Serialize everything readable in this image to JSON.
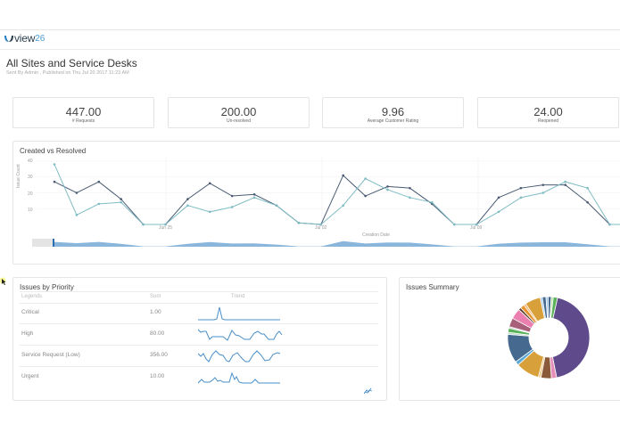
{
  "app": {
    "logo_text": "view",
    "logo_num": "26"
  },
  "report": {
    "title": "All Sites and Service Desks",
    "subtitle": "Sent By Admin , Published on Thu Jul 20 2017 11:23 AM"
  },
  "kpis": [
    {
      "value": "447.00",
      "label": "# Requests"
    },
    {
      "value": "200.00",
      "label": "Un-resolved"
    },
    {
      "value": "9.96",
      "label": "Average Customer Rating"
    },
    {
      "value": "24.00",
      "label": "Reopened"
    }
  ],
  "created_vs_resolved": {
    "title": "Created vs Resolved",
    "ylabel": "Issue Count",
    "xlabel": "Creation Date",
    "yticks": [
      "40",
      "30",
      "20",
      "10"
    ],
    "xticks": [
      "Jun 25",
      "Jul 02",
      "Jul 09"
    ]
  },
  "chart_data": {
    "type": "line",
    "title": "Created vs Resolved",
    "xlabel": "Creation Date",
    "ylabel": "Issue Count",
    "ylim": [
      0,
      40
    ],
    "x_tick_labels": [
      "Jun 25",
      "Jul 02",
      "Jul 09"
    ],
    "x_index": [
      0,
      1,
      2,
      3,
      4,
      5,
      6,
      7,
      8,
      9,
      10,
      11,
      12,
      13,
      14,
      15,
      16,
      17,
      18,
      19,
      20,
      21,
      22,
      23,
      24,
      25,
      26,
      27,
      28
    ],
    "series": [
      {
        "name": "Created",
        "color": "#4a5b73",
        "values": [
          27,
          20,
          27,
          16,
          0,
          0,
          16,
          26,
          18,
          19,
          12,
          1,
          0,
          31,
          18,
          24,
          23,
          13,
          0,
          0,
          17,
          23,
          25,
          25,
          14,
          0,
          0,
          null,
          null
        ]
      },
      {
        "name": "Resolved",
        "color": "#7fbcc4",
        "values": [
          38,
          6,
          13,
          14,
          0,
          0,
          12,
          8,
          11,
          17,
          12,
          1,
          0,
          12,
          29,
          22,
          17,
          14,
          0,
          0,
          8,
          17,
          20,
          27,
          23,
          0,
          0,
          null,
          null
        ]
      }
    ],
    "grid": true,
    "legend": "none"
  },
  "issues_by_priority": {
    "title": "Issues by Priority",
    "columns": [
      "Legends",
      "Sum",
      "Trend"
    ],
    "rows": [
      {
        "legend": "Critical",
        "sum": "1.00"
      },
      {
        "legend": "High",
        "sum": "80.00"
      },
      {
        "legend": "Service Request (Low)",
        "sum": "356.00"
      },
      {
        "legend": "Urgent",
        "sum": "10.00"
      }
    ]
  },
  "issues_summary": {
    "title": "Issues Summary",
    "slices": [
      {
        "color": "#5f4b8b",
        "value": 42
      },
      {
        "color": "#e58fb8",
        "value": 2
      },
      {
        "color": "#8a5a3a",
        "value": 4
      },
      {
        "color": "#f0c88a",
        "value": 1
      },
      {
        "color": "#d8a03a",
        "value": 9
      },
      {
        "color": "#5aa9d6",
        "value": 1.5
      },
      {
        "color": "#46698f",
        "value": 11
      },
      {
        "color": "#b9d7c0",
        "value": 0.8
      },
      {
        "color": "#59b15a",
        "value": 1.6
      },
      {
        "color": "#c5c5c5",
        "value": 0.6
      },
      {
        "color": "#a8607a",
        "value": 3.4
      },
      {
        "color": "#ea7fb0",
        "value": 4
      },
      {
        "color": "#5a3d2b",
        "value": 1
      },
      {
        "color": "#e8942e",
        "value": 1.6
      },
      {
        "color": "#f0b070",
        "value": 0.8
      },
      {
        "color": "#d8a03a",
        "value": 6
      },
      {
        "color": "#9fc8e8",
        "value": 0.8
      },
      {
        "color": "#46698f",
        "value": 1.4
      },
      {
        "color": "#9fc8e8",
        "value": 0.8
      },
      {
        "color": "#46698f",
        "value": 1.2
      },
      {
        "color": "#b7e0a0",
        "value": 0.8
      },
      {
        "color": "#59b15a",
        "value": 1.6
      }
    ]
  }
}
